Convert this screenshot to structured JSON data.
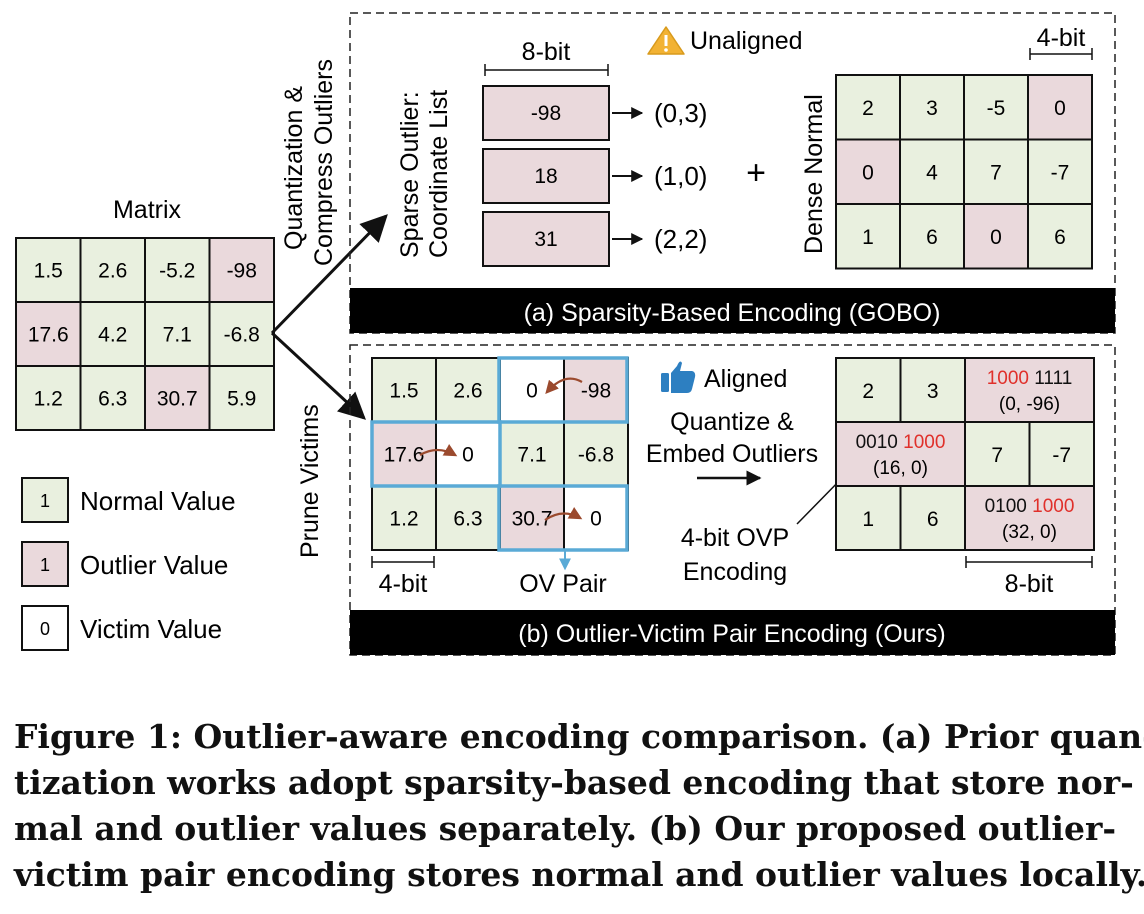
{
  "colors": {
    "normal_fill": "#e9f0df",
    "outlier_fill": "#ead9dc",
    "victim_fill": "#ffffff",
    "pair_border": "#5aaad6",
    "arc_arrow": "#9b4a2e",
    "highlight_red": "#e0302b",
    "banner_fill": "#000000",
    "banner_text": "#ffffff"
  },
  "matrix": {
    "title": "Matrix",
    "cells": [
      [
        {
          "v": "1.5",
          "t": "n"
        },
        {
          "v": "2.6",
          "t": "n"
        },
        {
          "v": "-5.2",
          "t": "n"
        },
        {
          "v": "-98",
          "t": "o"
        }
      ],
      [
        {
          "v": "17.6",
          "t": "o"
        },
        {
          "v": "4.2",
          "t": "n"
        },
        {
          "v": "7.1",
          "t": "n"
        },
        {
          "v": "-6.8",
          "t": "n"
        }
      ],
      [
        {
          "v": "1.2",
          "t": "n"
        },
        {
          "v": "6.3",
          "t": "n"
        },
        {
          "v": "30.7",
          "t": "o"
        },
        {
          "v": "5.9",
          "t": "n"
        }
      ]
    ]
  },
  "legend": [
    {
      "swatch": "1",
      "label": "Normal Value",
      "t": "n"
    },
    {
      "swatch": "1",
      "label": "Outlier Value",
      "t": "o"
    },
    {
      "swatch": "0",
      "label": "Victim Value",
      "t": "v"
    }
  ],
  "arrow_labels": {
    "top_line1": "Quantization &",
    "top_line2": "Compress Outliers",
    "bottom": "Prune Victims"
  },
  "panel_a": {
    "banner": "(a) Sparsity-Based Encoding (GOBO)",
    "sparse_label_line1": "Sparse Outlier:",
    "sparse_label_line2": "Coordinate List",
    "bit8": "8-bit",
    "unaligned_icon": "warning-icon",
    "unaligned": "Unaligned",
    "outliers": [
      {
        "value": "-98",
        "coord": "(0,3)"
      },
      {
        "value": "18",
        "coord": "(1,0)"
      },
      {
        "value": "31",
        "coord": "(2,2)"
      }
    ],
    "plus": "+",
    "dense_label": "Dense Normal",
    "bit4": "4-bit",
    "dense": [
      [
        {
          "v": "2",
          "t": "n"
        },
        {
          "v": "3",
          "t": "n"
        },
        {
          "v": "-5",
          "t": "n"
        },
        {
          "v": "0",
          "t": "o"
        }
      ],
      [
        {
          "v": "0",
          "t": "o"
        },
        {
          "v": "4",
          "t": "n"
        },
        {
          "v": "7",
          "t": "n"
        },
        {
          "v": "-7",
          "t": "n"
        }
      ],
      [
        {
          "v": "1",
          "t": "n"
        },
        {
          "v": "6",
          "t": "n"
        },
        {
          "v": "0",
          "t": "o"
        },
        {
          "v": "6",
          "t": "n"
        }
      ]
    ]
  },
  "panel_b": {
    "banner": "(b) Outlier-Victim Pair Encoding (Ours)",
    "pruned": [
      [
        {
          "v": "1.5",
          "t": "n"
        },
        {
          "v": "2.6",
          "t": "n"
        },
        {
          "v": "0",
          "t": "v"
        },
        {
          "v": "-98",
          "t": "o"
        }
      ],
      [
        {
          "v": "17.6",
          "t": "o"
        },
        {
          "v": "0",
          "t": "v"
        },
        {
          "v": "7.1",
          "t": "n"
        },
        {
          "v": "-6.8",
          "t": "n"
        }
      ],
      [
        {
          "v": "1.2",
          "t": "n"
        },
        {
          "v": "6.3",
          "t": "n"
        },
        {
          "v": "30.7",
          "t": "o"
        },
        {
          "v": "0",
          "t": "v"
        }
      ]
    ],
    "bit4": "4-bit",
    "ov_pair": "OV Pair",
    "aligned_icon": "thumbs-up-icon",
    "aligned": "Aligned",
    "quantize_line1": "Quantize &",
    "quantize_line2": "Embed Outliers",
    "ovp_line1": "4-bit OVP",
    "ovp_line2": "Encoding",
    "bit8": "8-bit",
    "encoded": {
      "r0": [
        "2",
        "3"
      ],
      "r0_pair": {
        "red": "1000",
        "black": "1111",
        "sub": "(0, -96)"
      },
      "r1_pair": {
        "black": "0010",
        "red": "1000",
        "sub": "(16, 0)"
      },
      "r1": [
        "7",
        "-7"
      ],
      "r2": [
        "1",
        "6"
      ],
      "r2_pair": {
        "black": "0100",
        "red": "1000",
        "sub": "(32, 0)"
      }
    }
  },
  "caption": {
    "line1": "Figure 1: Outlier-aware encoding comparison. (a) Prior quan-",
    "line2": "tization works adopt sparsity-based encoding that store nor-",
    "line3": "mal and outlier values separately. (b) Our proposed outlier-",
    "line4": "victim pair encoding stores normal and outlier values locally."
  }
}
